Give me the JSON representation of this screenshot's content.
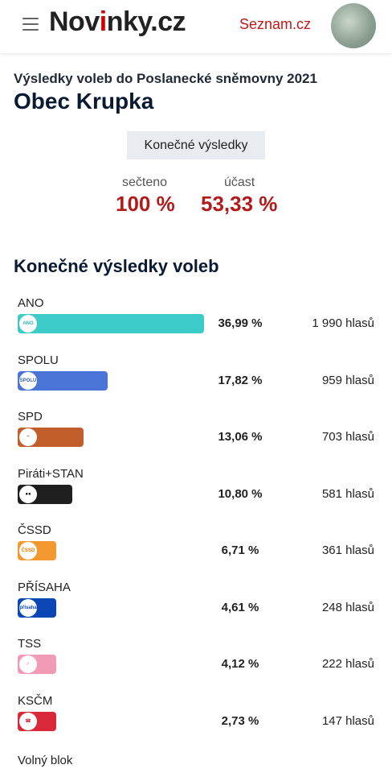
{
  "header": {
    "menu_icon": "hamburger-icon",
    "logo_part1": "Nov",
    "logo_accent": "i",
    "logo_part2": "nky.cz",
    "seznam_link": "Seznam.cz",
    "avatar_icon": "user-avatar"
  },
  "page": {
    "subtitle": "Výsledky voleb do Poslanecké sněmovny 2021",
    "title": "Obec Krupka",
    "final_results_button": "Konečné výsledky",
    "counted_label": "sečteno",
    "counted_value": "100 %",
    "turnout_label": "účast",
    "turnout_value": "53,33 %",
    "section_title": "Konečné výsledky voleb",
    "more_label": "Volný blok"
  },
  "colors": {
    "accent_red": "#b31b1b",
    "logo_red": "#d00000"
  },
  "results": [
    {
      "name": "ANO",
      "percent_value": 36.99,
      "percent": "36,99 %",
      "votes": "1 990 hlasů",
      "color": "#3ccbc8",
      "logo_text": "ANO",
      "logo_color": "#2bb5b2"
    },
    {
      "name": "SPOLU",
      "percent_value": 17.82,
      "percent": "17,82 %",
      "votes": "959 hlasů",
      "color": "#4a74d8",
      "logo_text": "SPOLU",
      "logo_color": "#3b5fb8"
    },
    {
      "name": "SPD",
      "percent_value": 13.06,
      "percent": "13,06 %",
      "votes": "703 hlasů",
      "color": "#c25e2c",
      "logo_text": "~",
      "logo_color": "#a94c20"
    },
    {
      "name": "Piráti+STAN",
      "percent_value": 10.8,
      "percent": "10,80 %",
      "votes": "581 hlasů",
      "color": "#1f1f1f",
      "logo_text": "●●",
      "logo_color": "#000000"
    },
    {
      "name": "ČSSD",
      "percent_value": 6.71,
      "percent": "6,71 %",
      "votes": "361 hlasů",
      "color": "#f29a30",
      "logo_text": "ČSSD",
      "logo_color": "#e27a00"
    },
    {
      "name": "PŘÍSAHA",
      "percent_value": 4.61,
      "percent": "4,61 %",
      "votes": "248 hlasů",
      "color": "#0b46b5",
      "logo_text": "přísaha",
      "logo_color": "#0b46b5"
    },
    {
      "name": "TSS",
      "percent_value": 4.12,
      "percent": "4,12 %",
      "votes": "222 hlasů",
      "color": "#f29bb5",
      "logo_text": "✓",
      "logo_color": "#e06a94"
    },
    {
      "name": "KSČM",
      "percent_value": 2.73,
      "percent": "2,73 %",
      "votes": "147 hlasů",
      "color": "#d9283a",
      "logo_text": "☎",
      "logo_color": "#c01f30"
    }
  ]
}
